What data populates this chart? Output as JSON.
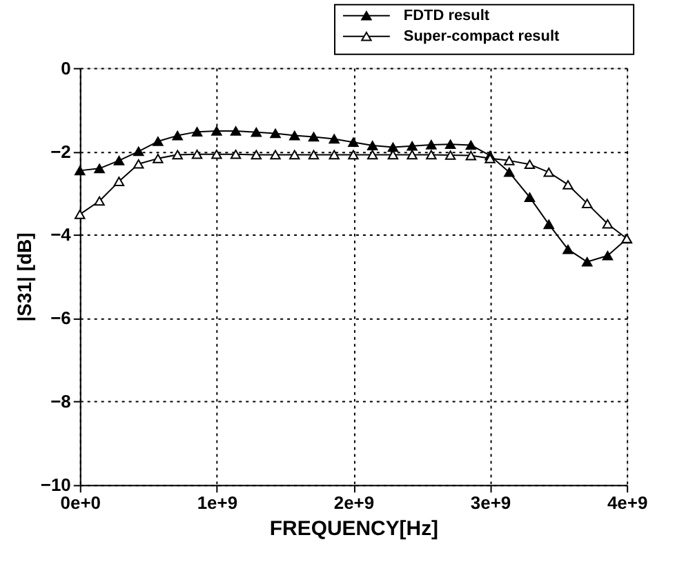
{
  "chart_data": {
    "type": "line",
    "xlabel": "FREQUENCY[Hz]",
    "ylabel": "|S31| [dB]",
    "x": [
      0,
      143000000.0,
      286000000.0,
      429000000.0,
      571000000.0,
      714000000.0,
      857000000.0,
      1000000000.0,
      1140000000.0,
      1290000000.0,
      1430000000.0,
      1570000000.0,
      1710000000.0,
      1860000000.0,
      2000000000.0,
      2140000000.0,
      2290000000.0,
      2430000000.0,
      2570000000.0,
      2710000000.0,
      2860000000.0,
      3000000000.0,
      3140000000.0,
      3290000000.0,
      3430000000.0,
      3570000000.0,
      3710000000.0,
      3860000000.0,
      4000000000.0
    ],
    "series": [
      {
        "name": "FDTD result",
        "color": "#000000",
        "values": [
          -2.46,
          -2.41,
          -2.22,
          -2.0,
          -1.76,
          -1.62,
          -1.53,
          -1.51,
          -1.51,
          -1.54,
          -1.57,
          -1.62,
          -1.65,
          -1.7,
          -1.78,
          -1.86,
          -1.9,
          -1.87,
          -1.84,
          -1.83,
          -1.85,
          -2.1,
          -2.5,
          -3.1,
          -3.75,
          -4.35,
          -4.65,
          -4.5,
          -4.1
        ]
      },
      {
        "name": "Super-compact result",
        "color": "#000000",
        "values": [
          -3.51,
          -3.19,
          -2.72,
          -2.3,
          -2.17,
          -2.08,
          -2.07,
          -2.07,
          -2.07,
          -2.08,
          -2.08,
          -2.08,
          -2.08,
          -2.08,
          -2.08,
          -2.08,
          -2.08,
          -2.08,
          -2.08,
          -2.09,
          -2.1,
          -2.17,
          -2.22,
          -2.31,
          -2.5,
          -2.8,
          -3.25,
          -3.74,
          -4.09
        ]
      }
    ],
    "xlim": [
      0,
      4000000000.0
    ],
    "xticks": [
      {
        "value": 0,
        "label": "0e+0"
      },
      {
        "value": 1000000000.0,
        "label": "1e+9"
      },
      {
        "value": 2000000000.0,
        "label": "2e+9"
      },
      {
        "value": 3000000000.0,
        "label": "3e+9"
      },
      {
        "value": 4000000000.0,
        "label": "4e+9"
      }
    ],
    "ylim": [
      -10,
      0
    ],
    "yticks": [
      -10,
      -8,
      -6,
      -4,
      -2,
      0
    ],
    "grid": true,
    "legend": "top right",
    "marker": "triangle",
    "line_style": "solid"
  }
}
